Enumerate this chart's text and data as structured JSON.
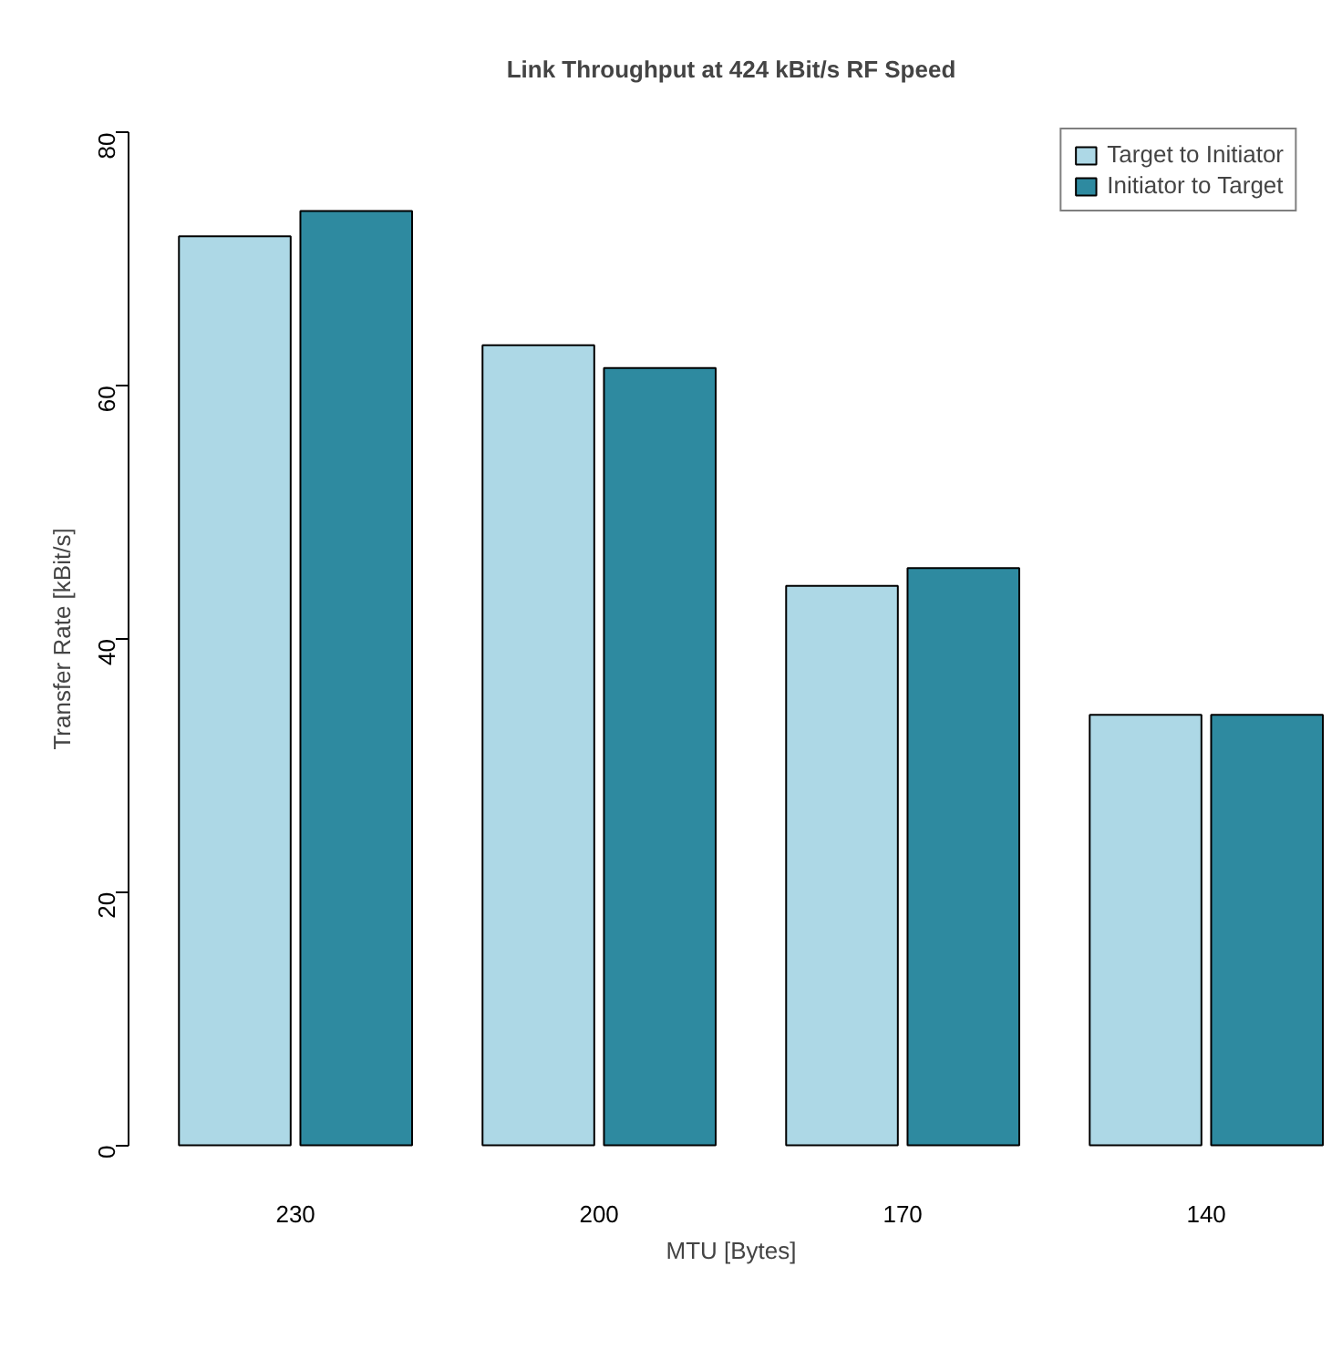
{
  "chart_data": {
    "type": "bar",
    "title": "Link Throughput at 424 kBit/s RF Speed",
    "xlabel": "MTU [Bytes]",
    "ylabel": "Transfer Rate [kBit/s]",
    "categories": [
      "230",
      "200",
      "170",
      "140"
    ],
    "series": [
      {
        "name": "Target to Initiator",
        "color": "#add8e6",
        "values": [
          71.8,
          63.2,
          44.2,
          34.0
        ]
      },
      {
        "name": "Initiator to Target",
        "color": "#2e8aa0",
        "values": [
          73.8,
          61.4,
          45.6,
          34.0
        ]
      }
    ],
    "ylim": [
      0,
      80
    ],
    "yticks": [
      0,
      20,
      40,
      60,
      80
    ],
    "grid": false,
    "legend": "top right"
  }
}
